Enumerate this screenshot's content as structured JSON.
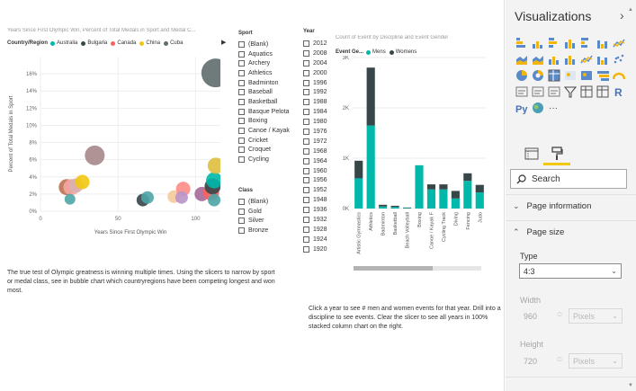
{
  "bubble_chart": {
    "title": "Years Since First Olympic Win, Percent of Total Medals in Sport and Medal C...",
    "legend_title": "Country/Region",
    "legend": [
      {
        "name": "Australia",
        "color": "#01b8aa"
      },
      {
        "name": "Bulgaria",
        "color": "#374649"
      },
      {
        "name": "Canada",
        "color": "#fd625e"
      },
      {
        "name": "China",
        "color": "#f2c80f"
      },
      {
        "name": "Cuba",
        "color": "#5f6b6d"
      }
    ],
    "xlabel": "Years Since First Olympic Win",
    "ylabel": "Percent of Total Medals in Sport"
  },
  "sport_slicer": {
    "title": "Sport",
    "items": [
      "(Blank)",
      "Aquatics",
      "Archery",
      "Athletics",
      "Badminton",
      "Baseball",
      "Basketball",
      "Basque Pelota",
      "Boxing",
      "Canoe / Kayak",
      "Cricket",
      "Croquet",
      "Cycling"
    ]
  },
  "class_slicer": {
    "title": "Class",
    "items": [
      "(Blank)",
      "Gold",
      "Silver",
      "Bronze"
    ]
  },
  "year_slicer": {
    "title": "Year",
    "items": [
      "2012",
      "2008",
      "2004",
      "2000",
      "1996",
      "1992",
      "1988",
      "1984",
      "1980",
      "1976",
      "1972",
      "1968",
      "1964",
      "1960",
      "1956",
      "1952",
      "1948",
      "1936",
      "1932",
      "1928",
      "1924",
      "1920"
    ]
  },
  "column_chart": {
    "title": "Count of Event by Discipline and Event Gender",
    "legend_title": "Event Ge...",
    "legend": [
      {
        "name": "Mens",
        "color": "#01b8aa"
      },
      {
        "name": "Womens",
        "color": "#374649"
      }
    ]
  },
  "notes": {
    "left": "The true test of Olympic greatness is winning multiple times. Using the slicers to narrow by sport or medal class, see in bubble chart which countryregions  have been competing longest and won most.",
    "right": "Click a year to see # men and women events for that year. Drill into a discipline to see events. Clear the slicer to see all years in 100% stacked column chart on the right."
  },
  "pane": {
    "title": "Visualizations",
    "search_placeholder": "Search",
    "page_information": "Page information",
    "page_size": "Page size",
    "type_label": "Type",
    "type_value": "4:3",
    "width_label": "Width",
    "width_value": "960",
    "height_label": "Height",
    "height_value": "720",
    "unit_value": "Pixels"
  },
  "chart_data": [
    {
      "type": "scatter",
      "title": "Years Since First Olympic Win, Percent of Total Medals in Sport and Medal C...",
      "xlabel": "Years Since First Olympic Win",
      "ylabel": "Percent of Total Medals in Sport",
      "xlim": [
        0,
        116
      ],
      "ylim": [
        0,
        18
      ],
      "x_ticks": [
        "0",
        "50",
        "100"
      ],
      "y_ticks": [
        "0%",
        "2%",
        "4%",
        "6%",
        "8%",
        "10%",
        "12%",
        "14%",
        "16%"
      ],
      "points": [
        {
          "x": 17,
          "y": 2.8,
          "size": 9,
          "color": "#bd7150"
        },
        {
          "x": 20,
          "y": 2.8,
          "size": 9,
          "color": "#f5a7a4"
        },
        {
          "x": 19,
          "y": 1.4,
          "size": 6,
          "color": "#4ea5a6"
        },
        {
          "x": 23,
          "y": 3.0,
          "size": 8,
          "color": "#d9b0b4"
        },
        {
          "x": 27,
          "y": 3.4,
          "size": 8,
          "color": "#f2c80f"
        },
        {
          "x": 35,
          "y": 6.5,
          "size": 11,
          "color": "#a6878a"
        },
        {
          "x": 66,
          "y": 1.3,
          "size": 7,
          "color": "#374649"
        },
        {
          "x": 69,
          "y": 1.6,
          "size": 7,
          "color": "#4ea5a6"
        },
        {
          "x": 86,
          "y": 1.7,
          "size": 7,
          "color": "#f5c99b"
        },
        {
          "x": 92,
          "y": 2.6,
          "size": 8,
          "color": "#fd8c87"
        },
        {
          "x": 91,
          "y": 1.6,
          "size": 7,
          "color": "#b995c9"
        },
        {
          "x": 104,
          "y": 2.0,
          "size": 8,
          "color": "#a66999"
        },
        {
          "x": 110,
          "y": 2.2,
          "size": 9,
          "color": "#fd625e"
        },
        {
          "x": 111,
          "y": 2.9,
          "size": 9,
          "color": "#374649"
        },
        {
          "x": 112,
          "y": 3.6,
          "size": 9,
          "color": "#01b8aa"
        },
        {
          "x": 113,
          "y": 5.3,
          "size": 9,
          "color": "#dfbf3d"
        },
        {
          "x": 112,
          "y": 1.3,
          "size": 7,
          "color": "#4ea5a6"
        },
        {
          "x": 113,
          "y": 16.1,
          "size": 16,
          "color": "#5f6b6d"
        }
      ]
    },
    {
      "type": "bar",
      "stacked": true,
      "title": "Count of Event by Discipline and Event Gender",
      "legend_title": "Event Ge...",
      "ylim": [
        0,
        3000
      ],
      "y_ticks": [
        "0K",
        "1K",
        "2K",
        "3K"
      ],
      "categories": [
        "Artistic Gymnastics",
        "Athletics",
        "Badminton",
        "Basketball",
        "Beach Volleyball",
        "Boxing",
        "Canoe / Kayak F",
        "Cycling Track",
        "Diving",
        "Fencing",
        "Judo"
      ],
      "series": [
        {
          "name": "Mens",
          "values": [
            600,
            1650,
            40,
            30,
            10,
            860,
            380,
            380,
            200,
            550,
            320
          ]
        },
        {
          "name": "Womens",
          "values": [
            350,
            1150,
            35,
            25,
            10,
            0,
            100,
            100,
            150,
            150,
            150
          ]
        }
      ]
    }
  ]
}
